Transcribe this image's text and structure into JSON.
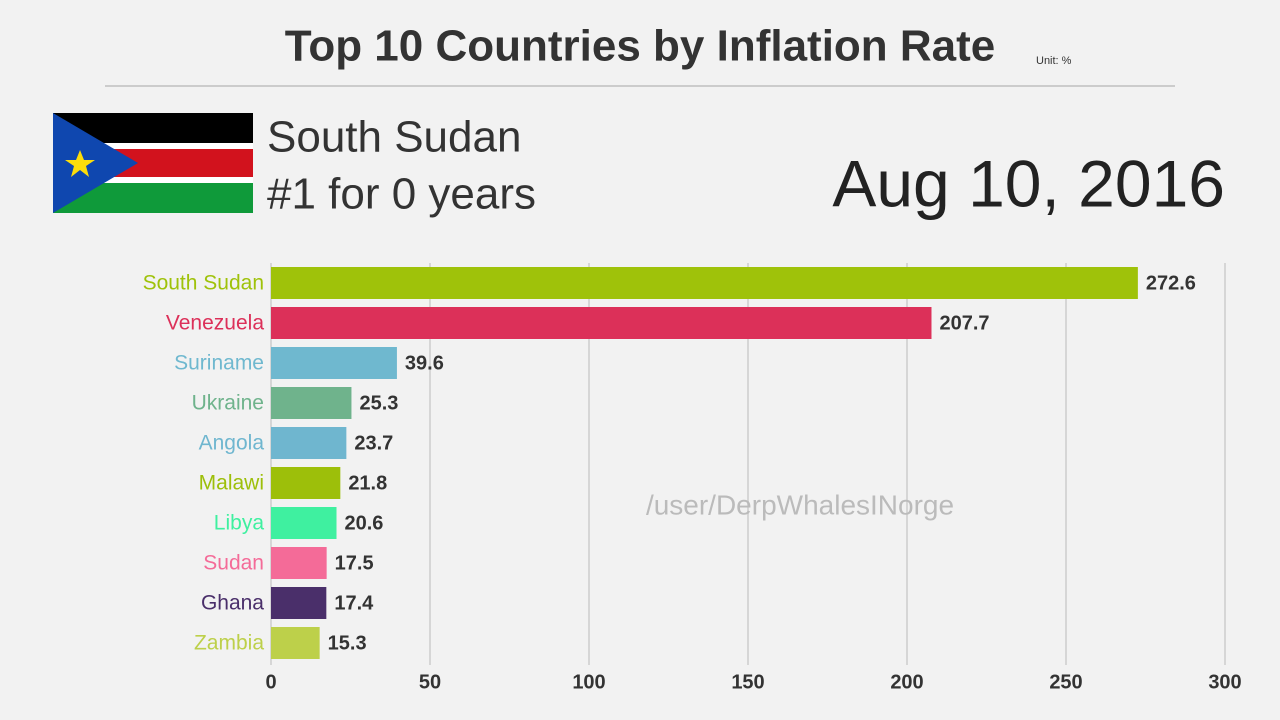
{
  "chart_data": {
    "type": "bar",
    "orientation": "horizontal",
    "title": "Top 10 Countries by Inflation Rate",
    "unit": "Unit: %",
    "leader": "South Sudan",
    "leader_note": "#1 for 0 years",
    "date": "Aug 10, 2016",
    "watermark": "/user/DerpWhalesINorge",
    "categories": [
      "South Sudan",
      "Venezuela",
      "Suriname",
      "Ukraine",
      "Angola",
      "Malawi",
      "Libya",
      "Sudan",
      "Ghana",
      "Zambia"
    ],
    "values": [
      272.6,
      207.7,
      39.6,
      25.3,
      23.7,
      21.8,
      20.6,
      17.5,
      17.4,
      15.3
    ],
    "colors": [
      "#9fc20a",
      "#dc3059",
      "#6fb8cf",
      "#6fb38c",
      "#6fb6cf",
      "#9dbf0a",
      "#3ff0a0",
      "#f46b98",
      "#4a2f6a",
      "#bdd04a"
    ],
    "xlim": [
      0,
      300
    ],
    "xticks": [
      0,
      50,
      100,
      150,
      200,
      250,
      300
    ],
    "grid": true
  }
}
